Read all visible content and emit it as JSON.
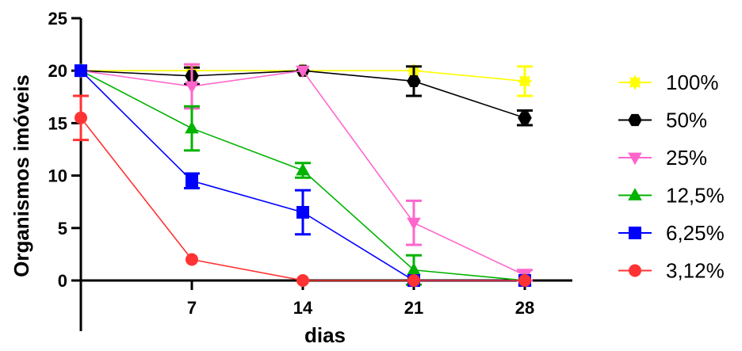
{
  "chart_data": {
    "type": "line",
    "xlabel": "dias",
    "ylabel": "Organismos imóveis",
    "xlim": [
      0,
      31
    ],
    "ylim": [
      0,
      25
    ],
    "x_ticks": [
      7,
      14,
      21,
      28
    ],
    "y_ticks": [
      0,
      5,
      10,
      15,
      20,
      25
    ],
    "legend_position": "right",
    "series": [
      {
        "name": "100%",
        "color": "#ffff00",
        "marker": "star",
        "x": [
          0,
          7,
          14,
          21,
          28
        ],
        "y": [
          20,
          20,
          20,
          20,
          19
        ],
        "err": [
          0,
          0,
          0,
          0,
          1.4
        ]
      },
      {
        "name": "50%",
        "color": "#000000",
        "marker": "hexagon",
        "x": [
          0,
          7,
          14,
          21,
          28
        ],
        "y": [
          20,
          19.5,
          20,
          19,
          15.5
        ],
        "err": [
          0,
          0.8,
          0,
          1.4,
          0.7
        ]
      },
      {
        "name": "25%",
        "color": "#ff66cc",
        "marker": "triangle-down",
        "x": [
          0,
          7,
          14,
          21,
          28
        ],
        "y": [
          20,
          18.5,
          20,
          5.5,
          0.5
        ],
        "err": [
          0,
          2.1,
          0,
          2.1,
          0.5
        ]
      },
      {
        "name": "12,5%",
        "color": "#00b300",
        "marker": "triangle-up",
        "x": [
          0,
          7,
          14,
          21,
          28
        ],
        "y": [
          20,
          14.5,
          10.5,
          1,
          0
        ],
        "err": [
          0,
          2.1,
          0.7,
          1.4,
          0
        ]
      },
      {
        "name": "6,25%",
        "color": "#0000ff",
        "marker": "square",
        "x": [
          0,
          7,
          14,
          21,
          28
        ],
        "y": [
          20,
          9.5,
          6.5,
          0,
          0
        ],
        "err": [
          0,
          0.7,
          2.1,
          0,
          0
        ]
      },
      {
        "name": "3,12%",
        "color": "#ff3333",
        "marker": "circle",
        "x": [
          0,
          7,
          14,
          21,
          28
        ],
        "y": [
          15.5,
          2,
          0,
          0,
          0
        ],
        "err": [
          2.1,
          0,
          0,
          0,
          0
        ]
      }
    ]
  }
}
